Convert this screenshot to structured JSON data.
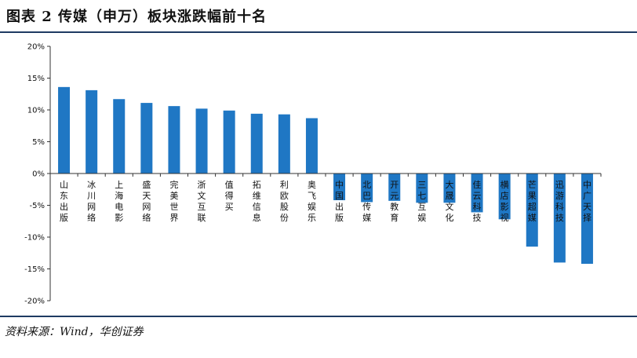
{
  "header": {
    "title": "图表 2   传媒（申万）板块涨跌幅前十名"
  },
  "footer": {
    "source": "资料来源：Wind，华创证券"
  },
  "colors": {
    "bar": "#1f77c4",
    "axis": "#333333",
    "rule": "#1f3b63"
  },
  "chart_data": {
    "type": "bar",
    "ylim": [
      -20,
      20
    ],
    "yticks": [
      {
        "value": 20,
        "label": "20%"
      },
      {
        "value": 15,
        "label": "15%"
      },
      {
        "value": 10,
        "label": "10%"
      },
      {
        "value": 5,
        "label": "5%"
      },
      {
        "value": 0,
        "label": "0%"
      },
      {
        "value": -5,
        "label": "-5%"
      },
      {
        "value": -10,
        "label": "-10%"
      },
      {
        "value": -15,
        "label": "-15%"
      },
      {
        "value": -20,
        "label": "-20%"
      }
    ],
    "grid": false,
    "legend": "none",
    "categories": [
      "山东出版",
      "冰川网络",
      "上海电影",
      "盛天网络",
      "完美世界",
      "浙文互联",
      "值得买",
      "拓维信息",
      "利欧股份",
      "奥飞娱乐",
      "中国出版",
      "北巴传媒",
      "开元教育",
      "三七互娱",
      "大晟文化",
      "佳云科技",
      "横店影视",
      "芒果超媒",
      "迅游科技",
      "中广天择"
    ],
    "values": [
      13.6,
      13.1,
      11.7,
      11.1,
      10.6,
      10.2,
      9.9,
      9.4,
      9.3,
      8.7,
      -4.2,
      -4.5,
      -4.3,
      -4.6,
      -4.6,
      -6.1,
      -7.2,
      -11.5,
      -14.0,
      -14.2
    ]
  }
}
